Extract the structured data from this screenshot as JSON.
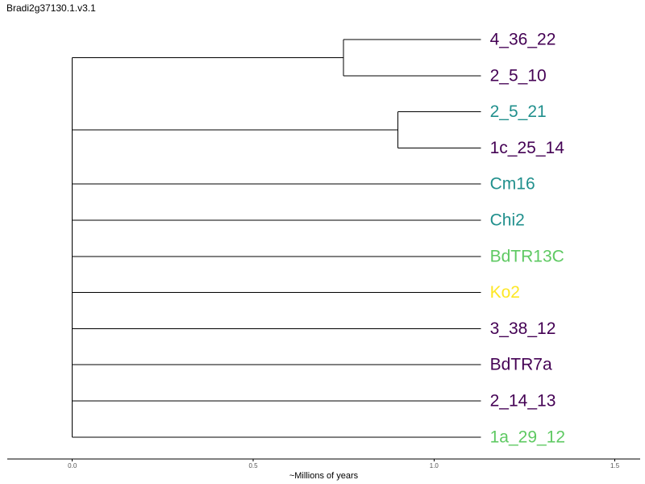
{
  "title": "Bradi2g37130.1.v3.1",
  "colors": {
    "branch": "#000000",
    "purple": "#440154",
    "teal": "#21908d",
    "green": "#5ec962",
    "yellow": "#fde725"
  },
  "tree": {
    "axis": {
      "label": "~Millions of years",
      "range": [
        -0.18,
        1.57
      ],
      "ticks": [
        {
          "value": 0.0,
          "label": "0.0"
        },
        {
          "value": 0.5,
          "label": "0.5"
        },
        {
          "value": 1.0,
          "label": "1.0"
        },
        {
          "value": 1.5,
          "label": "1.5"
        }
      ]
    },
    "tip_depth": 1.13,
    "tips": [
      {
        "label": "4_36_22",
        "color": "#440154"
      },
      {
        "label": "2_5_10",
        "color": "#440154"
      },
      {
        "label": "2_5_21",
        "color": "#21908d"
      },
      {
        "label": "1c_25_14",
        "color": "#440154"
      },
      {
        "label": "Cm16",
        "color": "#21908d"
      },
      {
        "label": "Chi2",
        "color": "#21908d"
      },
      {
        "label": "BdTR13C",
        "color": "#5ec962"
      },
      {
        "label": "Ko2",
        "color": "#fde725"
      },
      {
        "label": "3_38_12",
        "color": "#440154"
      },
      {
        "label": "BdTR7a",
        "color": "#440154"
      },
      {
        "label": "2_14_13",
        "color": "#440154"
      },
      {
        "label": "1a_29_12",
        "color": "#5ec962"
      }
    ],
    "root": {
      "depth": 0.0,
      "children": [
        {
          "depth": 0.75,
          "children": [
            {
              "tip": 0
            },
            {
              "tip": 1
            }
          ]
        },
        {
          "depth": 0.9,
          "children": [
            {
              "tip": 2
            },
            {
              "tip": 3
            }
          ]
        },
        {
          "tip": 4
        },
        {
          "tip": 5
        },
        {
          "tip": 6
        },
        {
          "tip": 7
        },
        {
          "tip": 8
        },
        {
          "tip": 9
        },
        {
          "tip": 10
        },
        {
          "tip": 11
        }
      ]
    }
  }
}
